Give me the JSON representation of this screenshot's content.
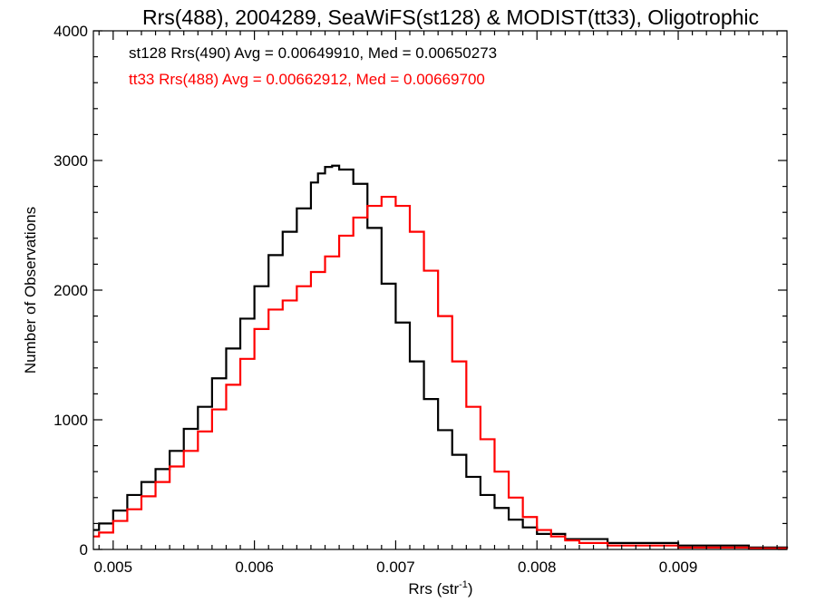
{
  "chart_data": {
    "type": "line",
    "step": true,
    "title": "Rrs(488), 2004289, SeaWiFS(st128) & MODIST(tt33), Oligotrophic",
    "xlabel": "Rrs (str",
    "xlabel_sup": "-1",
    "xlabel_close": ")",
    "ylabel": "Number of Observations",
    "xlim": [
      0.00486,
      0.00977
    ],
    "ylim": [
      0,
      4000
    ],
    "x_ticks": [
      0.005,
      0.006,
      0.007,
      0.008,
      0.009
    ],
    "x_tick_labels": [
      "0.005",
      "0.006",
      "0.007",
      "0.008",
      "0.009"
    ],
    "y_ticks": [
      0,
      1000,
      2000,
      3000,
      4000
    ],
    "y_tick_labels": [
      "0",
      "1000",
      "2000",
      "3000",
      "4000"
    ],
    "grid": false,
    "legend_position": "top-left",
    "legend": [
      {
        "text": "st128 Rrs(490) Avg = 0.00649910, Med = 0.00650273",
        "color": "#000000"
      },
      {
        "text": "tt33 Rrs(488) Avg = 0.00662912, Med = 0.00669700",
        "color": "#ff0000"
      }
    ],
    "series": [
      {
        "color": "#000000",
        "points": [
          [
            0.00486,
            150
          ],
          [
            0.0049,
            200
          ],
          [
            0.005,
            300
          ],
          [
            0.0051,
            420
          ],
          [
            0.0052,
            520
          ],
          [
            0.0053,
            620
          ],
          [
            0.0054,
            760
          ],
          [
            0.0055,
            930
          ],
          [
            0.0056,
            1100
          ],
          [
            0.0057,
            1320
          ],
          [
            0.0058,
            1550
          ],
          [
            0.0059,
            1780
          ],
          [
            0.006,
            2030
          ],
          [
            0.0061,
            2270
          ],
          [
            0.0062,
            2450
          ],
          [
            0.0063,
            2630
          ],
          [
            0.0064,
            2830
          ],
          [
            0.00645,
            2900
          ],
          [
            0.0065,
            2950
          ],
          [
            0.00655,
            2960
          ],
          [
            0.0066,
            2930
          ],
          [
            0.0067,
            2820
          ],
          [
            0.0068,
            2480
          ],
          [
            0.0069,
            2050
          ],
          [
            0.007,
            1750
          ],
          [
            0.0071,
            1450
          ],
          [
            0.0072,
            1160
          ],
          [
            0.0073,
            920
          ],
          [
            0.0074,
            730
          ],
          [
            0.0075,
            560
          ],
          [
            0.0076,
            420
          ],
          [
            0.0077,
            320
          ],
          [
            0.0078,
            230
          ],
          [
            0.0079,
            170
          ],
          [
            0.008,
            120
          ],
          [
            0.0082,
            80
          ],
          [
            0.0085,
            50
          ],
          [
            0.009,
            30
          ],
          [
            0.0095,
            15
          ],
          [
            0.00977,
            10
          ]
        ]
      },
      {
        "color": "#ff0000",
        "points": [
          [
            0.00486,
            100
          ],
          [
            0.0049,
            130
          ],
          [
            0.005,
            220
          ],
          [
            0.0051,
            310
          ],
          [
            0.0052,
            410
          ],
          [
            0.0053,
            520
          ],
          [
            0.0054,
            640
          ],
          [
            0.0055,
            760
          ],
          [
            0.0056,
            910
          ],
          [
            0.0057,
            1080
          ],
          [
            0.0058,
            1270
          ],
          [
            0.0059,
            1470
          ],
          [
            0.006,
            1700
          ],
          [
            0.0061,
            1850
          ],
          [
            0.0062,
            1920
          ],
          [
            0.0063,
            2030
          ],
          [
            0.0064,
            2140
          ],
          [
            0.0065,
            2260
          ],
          [
            0.0066,
            2420
          ],
          [
            0.0067,
            2560
          ],
          [
            0.0068,
            2650
          ],
          [
            0.0069,
            2720
          ],
          [
            0.007,
            2650
          ],
          [
            0.0071,
            2450
          ],
          [
            0.0072,
            2150
          ],
          [
            0.0073,
            1800
          ],
          [
            0.0074,
            1450
          ],
          [
            0.0075,
            1100
          ],
          [
            0.0076,
            850
          ],
          [
            0.0077,
            600
          ],
          [
            0.0078,
            400
          ],
          [
            0.0079,
            250
          ],
          [
            0.008,
            150
          ],
          [
            0.0081,
            100
          ],
          [
            0.0082,
            70
          ],
          [
            0.0083,
            50
          ],
          [
            0.0085,
            30
          ],
          [
            0.009,
            15
          ],
          [
            0.0095,
            8
          ],
          [
            0.00977,
            5
          ]
        ]
      }
    ]
  }
}
